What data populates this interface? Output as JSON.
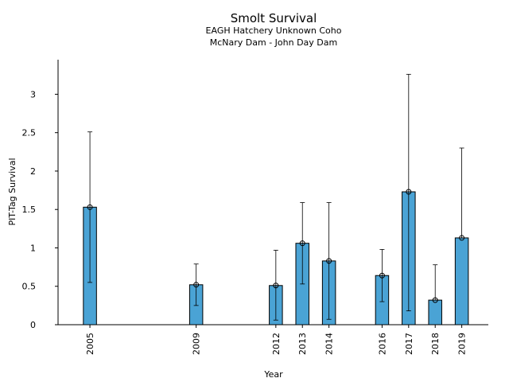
{
  "chart_data": {
    "type": "bar",
    "title": "Smolt Survival",
    "subtitle_lines": [
      "EAGH Hatchery Unknown Coho",
      "McNary Dam - John Day Dam"
    ],
    "xlabel": "Year",
    "ylabel": "PIT-Tag Survival",
    "x_range": [
      2003.8,
      2020.0
    ],
    "ylim": [
      0,
      3.45
    ],
    "y_ticks": [
      0,
      0.5,
      1,
      1.5,
      2,
      2.5,
      3
    ],
    "y_tick_labels": [
      "0",
      "0.5",
      "1",
      "1.5",
      "2",
      "2.5",
      "3"
    ],
    "grid": false,
    "bar_color": "#4aa3d5",
    "points": [
      {
        "year": 2005,
        "label": "2005",
        "value": 1.53,
        "lower": 0.55,
        "upper": 2.51
      },
      {
        "year": 2009,
        "label": "2009",
        "value": 0.52,
        "lower": 0.25,
        "upper": 0.79
      },
      {
        "year": 2012,
        "label": "2012",
        "value": 0.51,
        "lower": 0.06,
        "upper": 0.97
      },
      {
        "year": 2013,
        "label": "2013",
        "value": 1.06,
        "lower": 0.53,
        "upper": 1.59
      },
      {
        "year": 2014,
        "label": "2014",
        "value": 0.83,
        "lower": 0.07,
        "upper": 1.59
      },
      {
        "year": 2016,
        "label": "2016",
        "value": 0.64,
        "lower": 0.3,
        "upper": 0.98
      },
      {
        "year": 2017,
        "label": "2017",
        "value": 1.73,
        "lower": 0.18,
        "upper": 3.26
      },
      {
        "year": 2018,
        "label": "2018",
        "value": 0.32,
        "lower": 0.32,
        "upper": 0.78
      },
      {
        "year": 2019,
        "label": "2019",
        "value": 1.13,
        "lower": 1.13,
        "upper": 2.3
      }
    ]
  }
}
